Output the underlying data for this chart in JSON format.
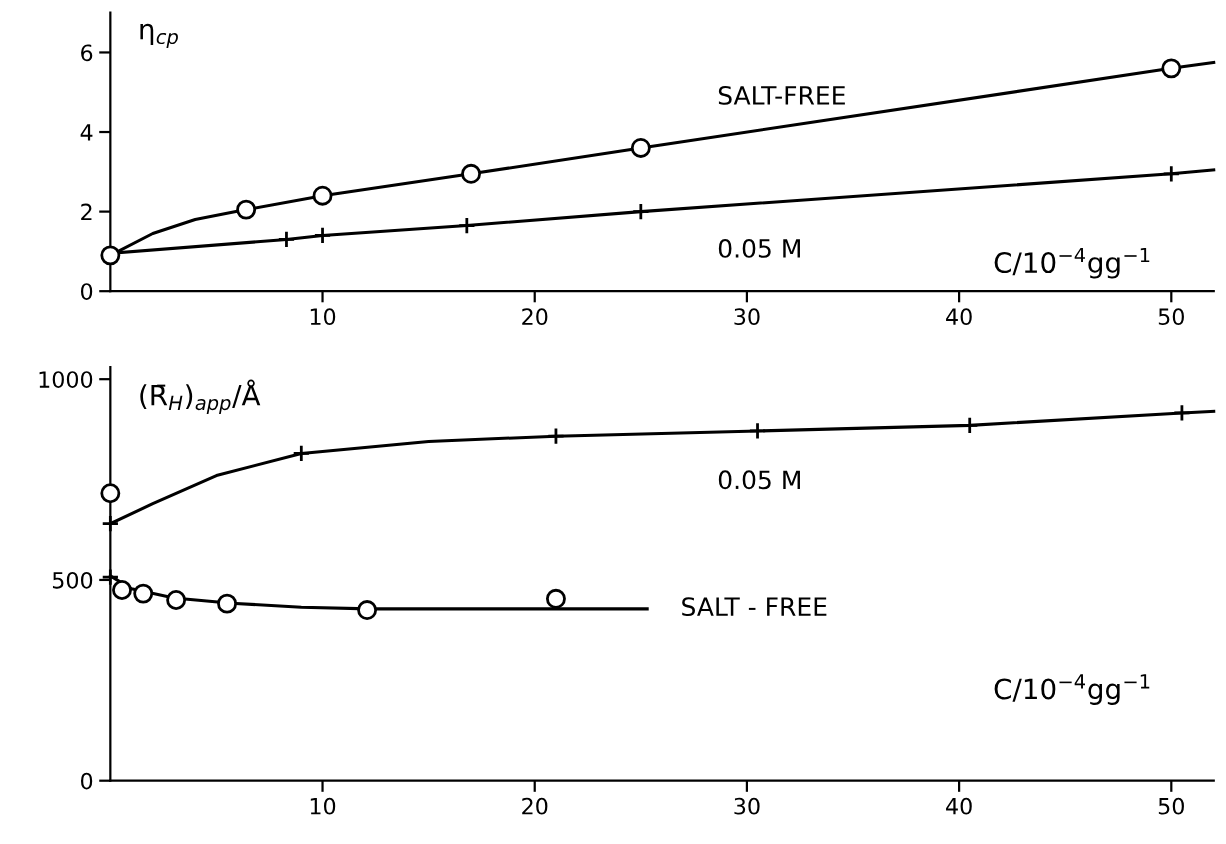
{
  "chart_data": [
    {
      "type": "line",
      "ylabel": "η$_{cp}$",
      "xlabel": "C/10$^{−4}$gg$^{−1}$",
      "xlim": [
        0,
        52
      ],
      "ylim": [
        0,
        7
      ],
      "xticks": [
        10,
        20,
        30,
        40,
        50
      ],
      "yticks": [
        0,
        2,
        4,
        6
      ],
      "grid": false,
      "legend": false,
      "series": [
        {
          "name": "SALT-FREE",
          "marker": "none",
          "color": "#000000",
          "x": [
            0,
            2,
            4,
            6.4,
            10,
            17,
            25,
            50,
            52
          ],
          "values": [
            0.9,
            1.45,
            1.8,
            2.05,
            2.4,
            2.95,
            3.6,
            5.6,
            5.75
          ]
        },
        {
          "name": "0.05 M",
          "marker": "none",
          "color": "#000000",
          "x": [
            0,
            8.3,
            10,
            16.8,
            25,
            50,
            52
          ],
          "values": [
            0.95,
            1.3,
            1.4,
            1.65,
            2.0,
            2.95,
            3.05
          ]
        },
        {
          "type": "scatter",
          "marker": "circle",
          "color": "#000000",
          "x": [
            0,
            6.4,
            10,
            17,
            25,
            50
          ],
          "values": [
            0.9,
            2.05,
            2.4,
            2.95,
            3.6,
            5.6
          ]
        },
        {
          "type": "scatter",
          "marker": "cross",
          "color": "#000000",
          "x": [
            8.3,
            10,
            16.8,
            25,
            50
          ],
          "values": [
            1.3,
            1.4,
            1.65,
            2.0,
            2.95
          ]
        }
      ]
    },
    {
      "type": "line",
      "ylabel": "(R̄$_{H}$)$_{app}$/Å",
      "xlabel": "C/10$^{−4}$gg$^{−1}$",
      "xlim": [
        0,
        52
      ],
      "ylim": [
        0,
        1030
      ],
      "xticks": [
        10,
        20,
        30,
        40,
        50
      ],
      "yticks": [
        0,
        500,
        1000
      ],
      "grid": false,
      "legend": false,
      "series": [
        {
          "name": "0.05 M",
          "marker": "none",
          "color": "#000000",
          "x": [
            0,
            2,
            5,
            9,
            15,
            21,
            30.5,
            40.5,
            50.5,
            52
          ],
          "values": [
            640,
            690,
            760,
            815,
            845,
            858,
            871,
            885,
            916,
            920
          ]
        },
        {
          "name": "SALT - FREE",
          "marker": "none",
          "color": "#000000",
          "x": [
            0,
            1,
            3,
            5.7,
            9,
            12.2,
            18,
            25.3
          ],
          "values": [
            510,
            478,
            455,
            442,
            432,
            428,
            428,
            428
          ]
        },
        {
          "type": "scatter",
          "marker": "cross",
          "color": "#000000",
          "x": [
            0,
            9,
            21,
            30.5,
            40.5,
            50.5,
            0
          ],
          "values": [
            640,
            815,
            858,
            871,
            885,
            916,
            507
          ]
        },
        {
          "type": "scatter",
          "marker": "circle",
          "color": "#000000",
          "x": [
            0,
            0.55,
            1.55,
            3.1,
            5.5,
            12.1,
            21
          ],
          "values": [
            716,
            475,
            466,
            450,
            441,
            425,
            453
          ]
        }
      ]
    }
  ]
}
